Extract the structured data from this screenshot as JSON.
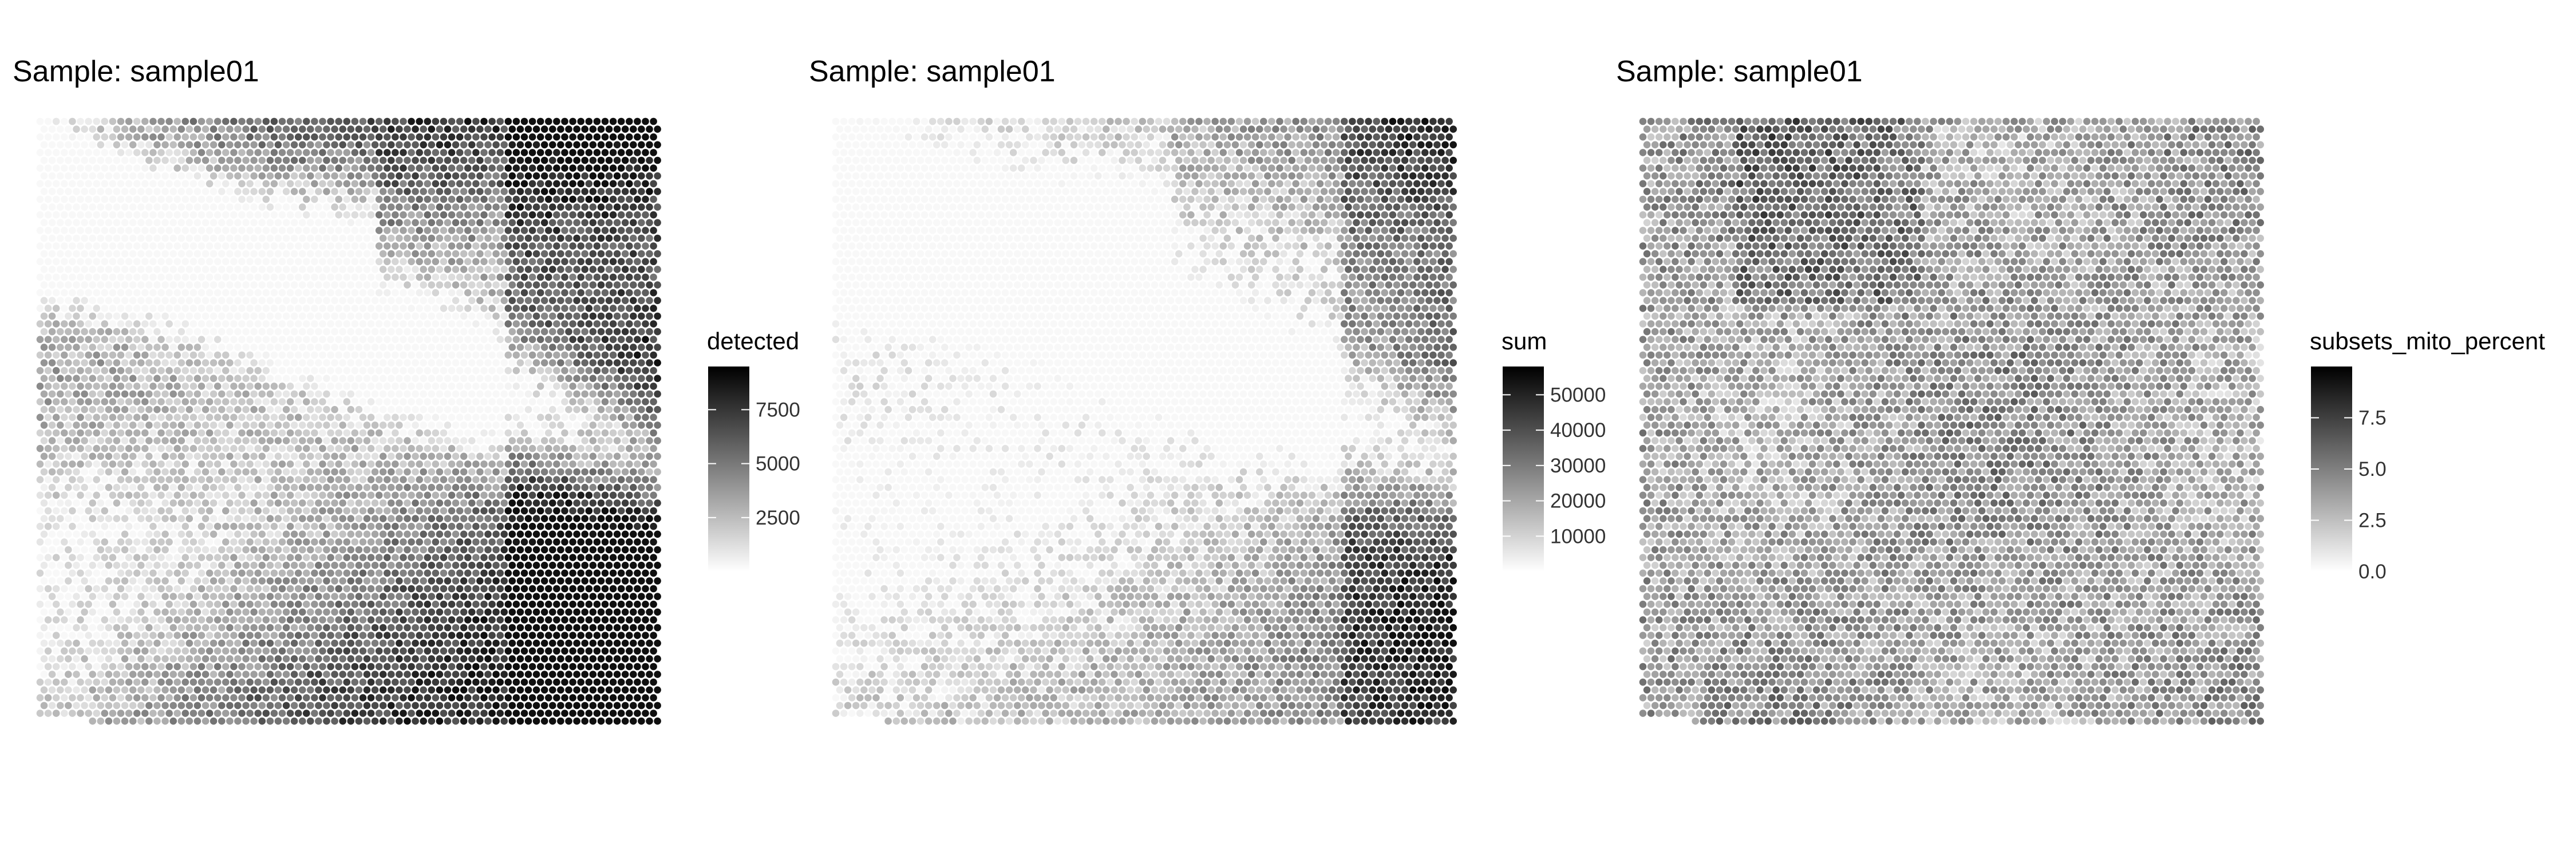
{
  "chart_data": [
    {
      "type": "heatmap",
      "title": "Sample: sample01",
      "legend": {
        "title": "detected",
        "position": "right",
        "range": [
          0,
          9500
        ],
        "ticks": [
          2500,
          5000,
          7500
        ],
        "tick_labels": [
          "2500",
          "5000",
          "7500"
        ]
      },
      "color_scale": {
        "low": "#ffffff",
        "high": "#000000"
      },
      "grid": false
    },
    {
      "type": "heatmap",
      "title": "Sample: sample01",
      "legend": {
        "title": "sum",
        "position": "right",
        "range": [
          0,
          58000
        ],
        "ticks": [
          10000,
          20000,
          30000,
          40000,
          50000
        ],
        "tick_labels": [
          "10000",
          "20000",
          "30000",
          "40000",
          "50000"
        ]
      },
      "color_scale": {
        "low": "#ffffff",
        "high": "#000000"
      },
      "grid": false
    },
    {
      "type": "heatmap",
      "title": "Sample: sample01",
      "legend": {
        "title": "subsets_mito_percent",
        "position": "right",
        "range": [
          0,
          10
        ],
        "ticks": [
          0.0,
          2.5,
          5.0,
          7.5
        ],
        "tick_labels": [
          "0.0",
          "2.5",
          "5.0",
          "7.5"
        ]
      },
      "color_scale": {
        "low": "#ffffff",
        "high": "#000000"
      },
      "grid": false
    }
  ]
}
